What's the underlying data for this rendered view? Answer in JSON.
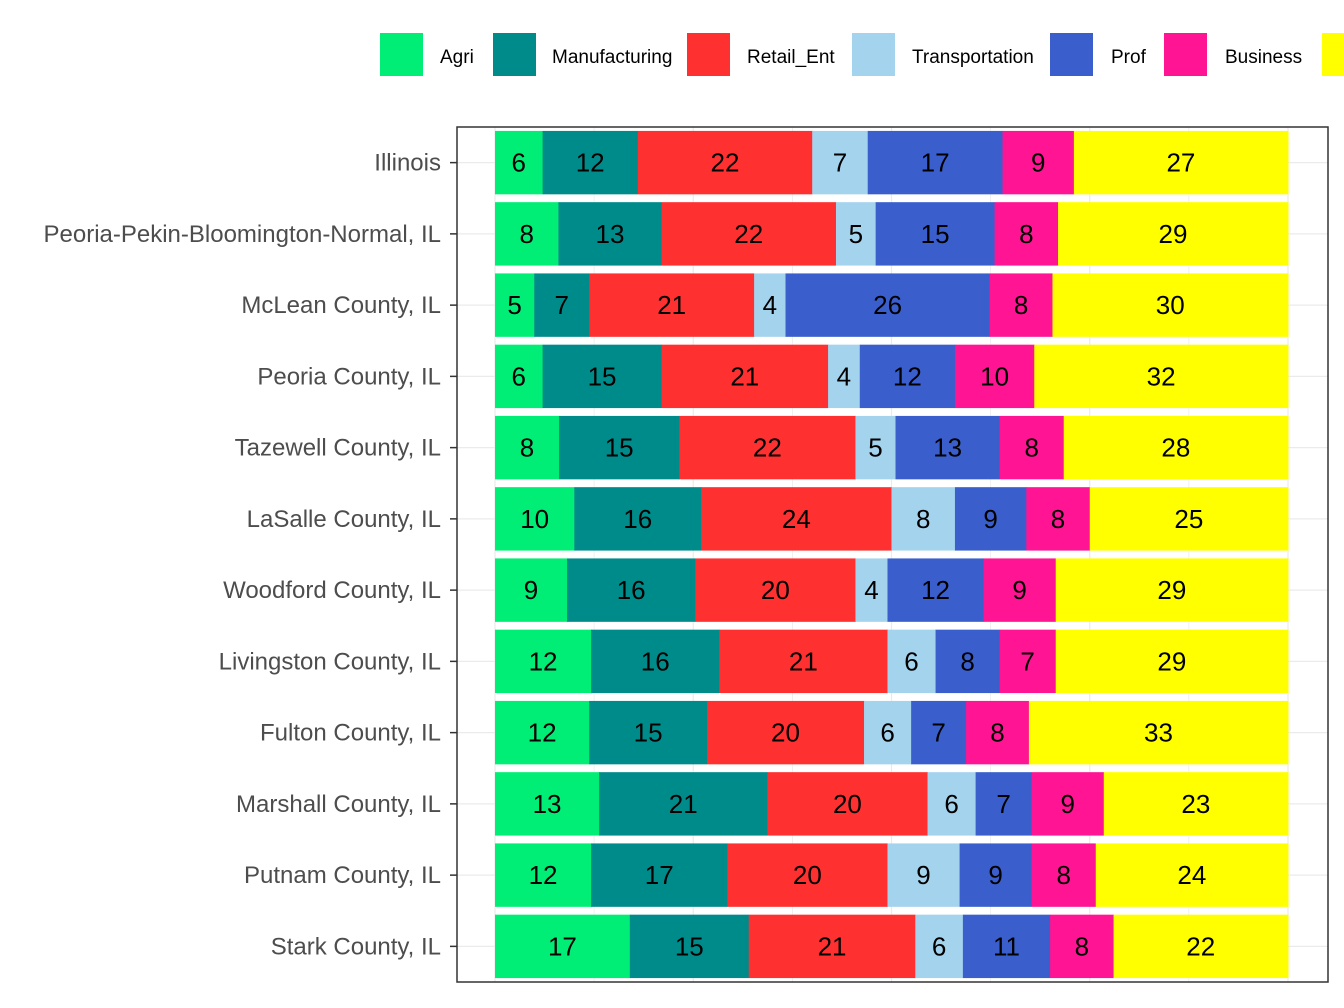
{
  "chart_data": {
    "type": "bar",
    "orientation": "horizontal",
    "stacked": true,
    "title": "",
    "xlabel": "",
    "ylabel": "",
    "grid": true,
    "legend_position": "top",
    "categories": [
      "Illinois",
      "Peoria-Pekin-Bloomington-Normal, IL",
      "McLean County, IL",
      "Peoria County, IL",
      "Tazewell County, IL",
      "LaSalle County, IL",
      "Woodford County, IL",
      "Livingston County, IL",
      "Fulton County, IL",
      "Marshall County, IL",
      "Putnam County, IL",
      "Stark County, IL"
    ],
    "series": [
      {
        "name": "Agri",
        "color": "#00EE76",
        "values": [
          6,
          8,
          5,
          6,
          8,
          10,
          9,
          12,
          12,
          13,
          12,
          17
        ]
      },
      {
        "name": "Manufacturing",
        "color": "#008B8B",
        "values": [
          12,
          13,
          7,
          15,
          15,
          16,
          16,
          16,
          15,
          21,
          17,
          15
        ]
      },
      {
        "name": "Retail_Ent",
        "color": "#FF3030",
        "values": [
          22,
          22,
          21,
          21,
          22,
          24,
          20,
          21,
          20,
          20,
          20,
          21
        ]
      },
      {
        "name": "Transportation",
        "color": "#A4D3EE",
        "values": [
          7,
          5,
          4,
          4,
          5,
          8,
          4,
          6,
          6,
          6,
          9,
          6
        ]
      },
      {
        "name": "Prof",
        "color": "#3A5FCD",
        "values": [
          17,
          15,
          26,
          12,
          13,
          9,
          12,
          8,
          7,
          7,
          9,
          11
        ]
      },
      {
        "name": "Business",
        "color": "#FF1493",
        "values": [
          9,
          8,
          8,
          10,
          8,
          8,
          9,
          7,
          8,
          9,
          8,
          8
        ]
      },
      {
        "name": "",
        "color": "#FFFF00",
        "values": [
          27,
          29,
          30,
          32,
          28,
          25,
          29,
          29,
          33,
          23,
          24,
          22
        ]
      }
    ]
  }
}
